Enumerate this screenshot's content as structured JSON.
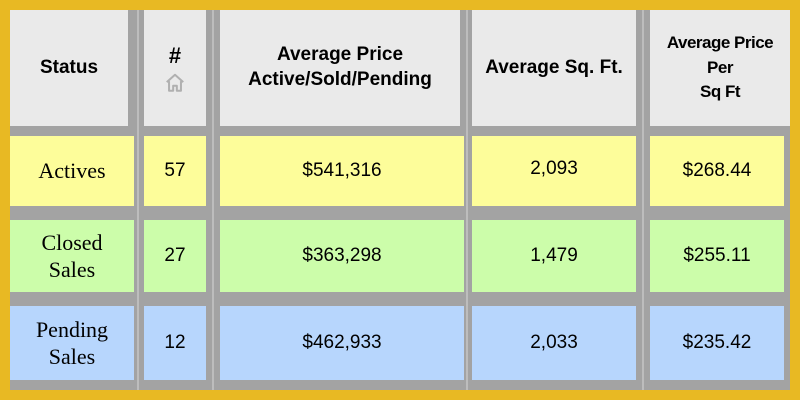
{
  "header": {
    "status": "Status",
    "count": "#",
    "count_icon": "home-icon",
    "avg_price_line1": "Average Price",
    "avg_price_line2": "Active/Sold/Pending",
    "avg_sqft": "Average Sq. Ft.",
    "ppsf_line1": "Average Price",
    "ppsf_line2": "Per",
    "ppsf_line3": "Sq Ft"
  },
  "rows": [
    {
      "status_line1": "Actives",
      "status_line2": "",
      "count": "57",
      "avg_price": "$541,316",
      "avg_sqft": "2,093",
      "ppsf": "$268.44"
    },
    {
      "status_line1": "Closed",
      "status_line2": "Sales",
      "count": "27",
      "avg_price": "$363,298",
      "avg_sqft": "1,479",
      "ppsf": "$255.11"
    },
    {
      "status_line1": "Pending",
      "status_line2": "Sales",
      "count": "12",
      "avg_price": "$462,933",
      "avg_sqft": "2,033",
      "ppsf": "$235.42"
    }
  ],
  "colors": {
    "frame": "#e8b923",
    "header": "#eaeaea",
    "actives": "#fdfd9a",
    "closed": "#ccfdaa",
    "pending": "#b7d6fd",
    "grid": "#a3a3a3"
  }
}
